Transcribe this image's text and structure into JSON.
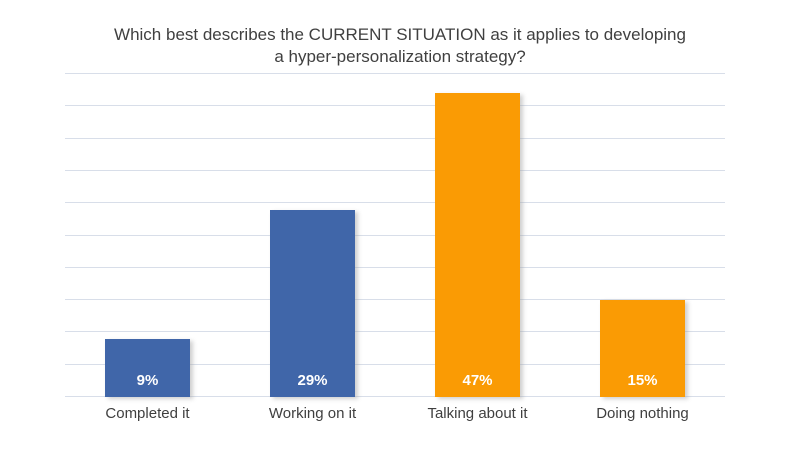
{
  "chart_data": {
    "type": "bar",
    "title": "Which best describes the CURRENT SITUATION as it applies to developing a hyper-personalization strategy?",
    "categories": [
      "Completed it",
      "Working on it",
      "Talking about it",
      "Doing nothing"
    ],
    "values": [
      9,
      29,
      47,
      15
    ],
    "value_labels": [
      "9%",
      "29%",
      "47%",
      "15%"
    ],
    "bar_colors": [
      "#4066A9",
      "#4066A9",
      "#FA9B04",
      "#FA9B04"
    ],
    "xlabel": "",
    "ylabel": "",
    "ylim": [
      0,
      50
    ],
    "grid_step": 5,
    "grid_on": true,
    "legend_position": "none",
    "colors": {
      "blue_series": "#4066A9",
      "orange_series": "#FA9B04",
      "gridline": "#D8DEE9",
      "title_text": "#404040",
      "category_text": "#3F3F3F",
      "value_label_text": "#FFFFFF",
      "background": "#FFFFFF"
    }
  }
}
